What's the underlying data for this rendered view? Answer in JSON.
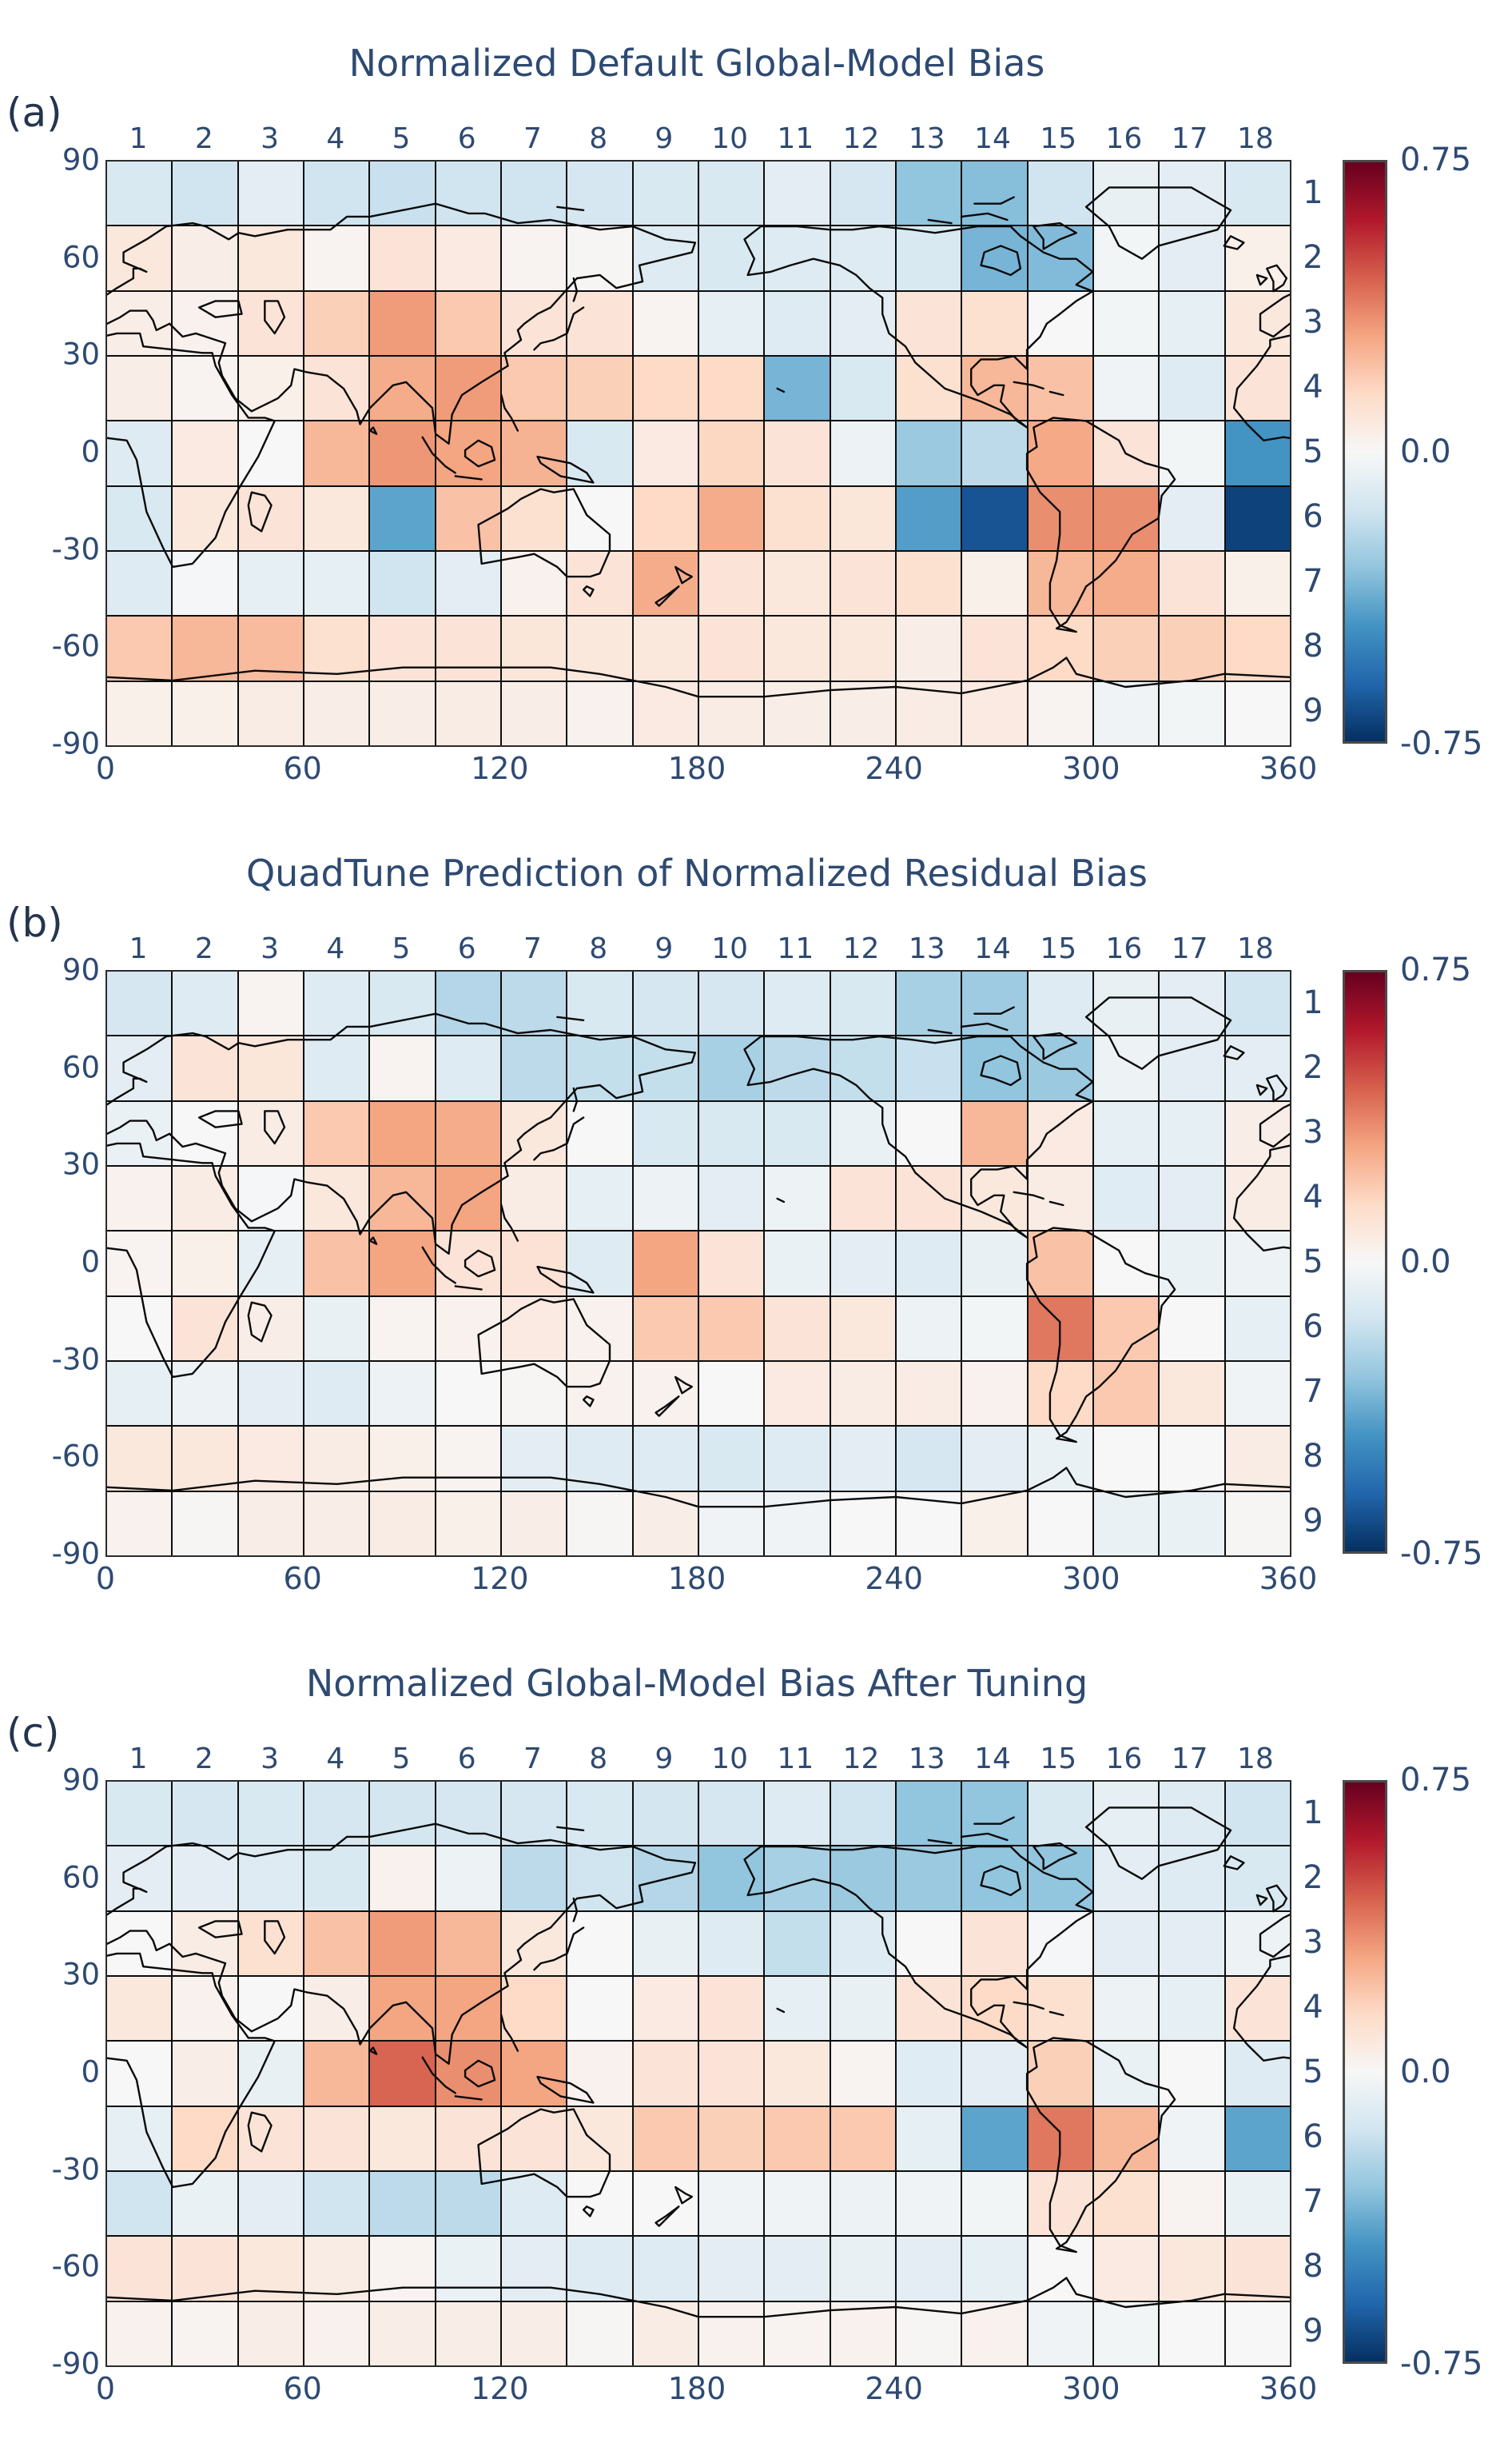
{
  "figure": {
    "background": "#ffffff",
    "text_color": "#2e4a72",
    "gridline_color": "#0d0d0d",
    "coastline_color": "#0a0a0a"
  },
  "colorbar": {
    "ticks": [
      "0.75",
      "0.0",
      "-0.75"
    ],
    "vmin": -0.75,
    "vmax": 0.75,
    "colormap": "RdBu_r"
  },
  "axes": {
    "x_top_ticks": [
      1,
      2,
      3,
      4,
      5,
      6,
      7,
      8,
      9,
      10,
      11,
      12,
      13,
      14,
      15,
      16,
      17,
      18
    ],
    "y_right_ticks": [
      1,
      2,
      3,
      4,
      5,
      6,
      7,
      8,
      9
    ],
    "x_bottom_ticks": [
      0,
      60,
      120,
      180,
      240,
      300,
      360
    ],
    "y_left_ticks": [
      90,
      60,
      30,
      0,
      -30,
      -60,
      -90
    ],
    "x_range": [
      0,
      360
    ],
    "y_range": [
      -90,
      90
    ]
  },
  "chart_data": [
    {
      "type": "heatmap",
      "panel_label": "(a)",
      "title": "Normalized Default Global-Model Bias",
      "xlabel": "",
      "ylabel": "",
      "vmin": -0.75,
      "vmax": 0.75,
      "values": [
        [
          -0.12,
          -0.15,
          -0.08,
          -0.15,
          -0.17,
          -0.15,
          -0.15,
          -0.13,
          -0.12,
          -0.12,
          -0.08,
          -0.13,
          -0.3,
          -0.32,
          -0.15,
          -0.06,
          -0.08,
          -0.12
        ],
        [
          0.08,
          0.05,
          0.08,
          0.02,
          0.1,
          0.07,
          0.02,
          0.01,
          -0.1,
          -0.12,
          -0.1,
          -0.1,
          -0.12,
          -0.35,
          -0.33,
          -0.02,
          -0.08,
          0.04
        ],
        [
          0.05,
          0.03,
          0.1,
          0.18,
          0.32,
          0.2,
          0.1,
          0.1,
          0.02,
          -0.07,
          -0.1,
          -0.08,
          0.1,
          0.12,
          0.0,
          -0.02,
          -0.07,
          0.08
        ],
        [
          0.05,
          0.02,
          0.04,
          0.1,
          0.28,
          0.32,
          0.2,
          0.18,
          0.15,
          0.15,
          -0.35,
          -0.12,
          0.12,
          0.25,
          0.22,
          -0.03,
          -0.1,
          0.1
        ],
        [
          -0.1,
          0.07,
          0.0,
          0.25,
          0.33,
          0.3,
          0.26,
          -0.12,
          0.07,
          0.16,
          0.1,
          -0.04,
          -0.28,
          -0.2,
          0.29,
          0.1,
          -0.02,
          -0.45
        ],
        [
          -0.12,
          0.08,
          0.1,
          0.08,
          -0.4,
          0.22,
          0.12,
          0.0,
          0.15,
          0.28,
          0.12,
          0.09,
          -0.42,
          -0.65,
          0.35,
          0.35,
          -0.08,
          -0.7
        ],
        [
          -0.1,
          -0.01,
          -0.07,
          -0.07,
          -0.15,
          -0.08,
          0.03,
          0.1,
          0.28,
          0.1,
          0.08,
          0.1,
          0.12,
          0.04,
          0.25,
          0.28,
          0.1,
          0.04
        ],
        [
          0.2,
          0.25,
          0.24,
          0.12,
          0.1,
          0.1,
          0.09,
          0.08,
          0.08,
          0.1,
          0.08,
          0.08,
          0.05,
          0.1,
          0.15,
          0.18,
          0.18,
          0.15
        ],
        [
          0.04,
          0.04,
          0.06,
          0.05,
          0.05,
          0.06,
          0.05,
          0.03,
          0.07,
          0.06,
          0.05,
          0.05,
          0.06,
          0.07,
          0.02,
          -0.03,
          -0.02,
          0.0
        ]
      ]
    },
    {
      "type": "heatmap",
      "panel_label": "(b)",
      "title": "QuadTune Prediction of Normalized Residual Bias",
      "xlabel": "",
      "ylabel": "",
      "vmin": -0.75,
      "vmax": 0.75,
      "values": [
        [
          -0.13,
          -0.1,
          0.02,
          -0.1,
          -0.12,
          -0.22,
          -0.2,
          -0.12,
          -0.13,
          -0.13,
          -0.1,
          -0.12,
          -0.25,
          -0.27,
          -0.1,
          -0.06,
          -0.08,
          -0.15
        ],
        [
          -0.08,
          0.1,
          0.09,
          -0.1,
          0.02,
          -0.1,
          -0.2,
          -0.18,
          -0.18,
          -0.25,
          -0.2,
          -0.18,
          -0.17,
          -0.3,
          -0.28,
          -0.04,
          -0.08,
          -0.08
        ],
        [
          -0.05,
          0.0,
          0.06,
          0.2,
          0.3,
          0.28,
          0.08,
          0.0,
          -0.12,
          -0.12,
          -0.12,
          -0.05,
          0.0,
          0.25,
          0.07,
          -0.07,
          -0.07,
          0.05
        ],
        [
          0.03,
          0.06,
          -0.01,
          0.08,
          0.25,
          0.3,
          0.06,
          -0.07,
          -0.04,
          -0.08,
          -0.04,
          0.1,
          0.1,
          0.08,
          0.06,
          -0.09,
          -0.08,
          0.06
        ],
        [
          0.02,
          0.04,
          -0.07,
          0.22,
          0.3,
          0.1,
          0.11,
          -0.1,
          0.3,
          0.1,
          -0.05,
          -0.08,
          -0.1,
          -0.06,
          0.22,
          0.0,
          -0.05,
          -0.04
        ],
        [
          0.0,
          0.1,
          0.05,
          -0.06,
          0.02,
          0.03,
          0.07,
          0.03,
          0.2,
          0.2,
          0.1,
          0.08,
          -0.04,
          -0.02,
          0.4,
          0.2,
          0.0,
          -0.07
        ],
        [
          -0.07,
          -0.04,
          -0.08,
          -0.1,
          -0.04,
          0.0,
          0.01,
          0.03,
          0.03,
          0.0,
          0.07,
          0.06,
          0.06,
          0.03,
          0.15,
          0.2,
          0.08,
          -0.03
        ],
        [
          0.08,
          0.08,
          0.07,
          0.06,
          0.04,
          0.02,
          -0.08,
          -0.1,
          -0.1,
          -0.12,
          -0.1,
          -0.08,
          -0.13,
          -0.08,
          -0.05,
          0.0,
          0.0,
          0.06
        ],
        [
          0.03,
          0.01,
          0.05,
          0.05,
          0.06,
          0.04,
          0.05,
          0.01,
          0.05,
          -0.03,
          -0.03,
          0.0,
          0.0,
          0.04,
          0.0,
          -0.05,
          -0.05,
          0.01
        ]
      ]
    },
    {
      "type": "heatmap",
      "panel_label": "(c)",
      "title": "Normalized Global-Model Bias After Tuning",
      "xlabel": "",
      "ylabel": "",
      "vmin": -0.75,
      "vmax": 0.75,
      "values": [
        [
          -0.12,
          -0.13,
          -0.12,
          -0.13,
          -0.14,
          -0.13,
          -0.13,
          -0.12,
          -0.14,
          -0.13,
          -0.1,
          -0.15,
          -0.3,
          -0.3,
          -0.12,
          -0.07,
          -0.1,
          -0.15
        ],
        [
          -0.08,
          -0.08,
          -0.1,
          -0.12,
          0.03,
          -0.04,
          -0.2,
          -0.15,
          -0.22,
          -0.3,
          -0.25,
          -0.28,
          -0.28,
          -0.3,
          -0.3,
          -0.08,
          -0.1,
          -0.12
        ],
        [
          0.0,
          0.06,
          0.12,
          0.22,
          0.32,
          0.25,
          0.08,
          0.0,
          -0.06,
          -0.1,
          -0.18,
          -0.1,
          0.0,
          0.1,
          -0.01,
          -0.08,
          -0.08,
          -0.04
        ],
        [
          0.08,
          0.03,
          0.0,
          0.05,
          0.3,
          0.3,
          0.15,
          0.0,
          0.07,
          0.1,
          -0.07,
          -0.06,
          0.1,
          0.15,
          0.12,
          -0.04,
          -0.07,
          0.1
        ],
        [
          0.0,
          0.05,
          -0.06,
          0.25,
          0.44,
          0.35,
          0.3,
          0.03,
          0.1,
          0.1,
          0.08,
          0.02,
          -0.09,
          -0.08,
          0.18,
          -0.05,
          0.0,
          -0.1
        ],
        [
          -0.07,
          0.15,
          0.1,
          0.1,
          0.08,
          0.1,
          0.1,
          0.08,
          0.2,
          0.18,
          0.2,
          0.2,
          -0.07,
          -0.4,
          0.4,
          0.25,
          -0.03,
          -0.4
        ],
        [
          -0.15,
          -0.05,
          -0.08,
          -0.15,
          -0.2,
          -0.2,
          -0.1,
          0.0,
          0.0,
          -0.03,
          -0.03,
          -0.04,
          -0.03,
          -0.02,
          0.1,
          0.12,
          0.02,
          -0.05
        ],
        [
          0.1,
          0.1,
          0.08,
          0.06,
          0.02,
          -0.05,
          -0.08,
          -0.1,
          -0.1,
          -0.08,
          -0.08,
          -0.06,
          -0.08,
          -0.07,
          0.0,
          0.07,
          0.08,
          0.1
        ],
        [
          0.03,
          0.02,
          0.05,
          0.03,
          0.05,
          0.05,
          0.05,
          0.01,
          0.06,
          0.03,
          0.02,
          0.03,
          0.01,
          0.03,
          -0.03,
          -0.02,
          0.0,
          0.0
        ]
      ]
    }
  ]
}
